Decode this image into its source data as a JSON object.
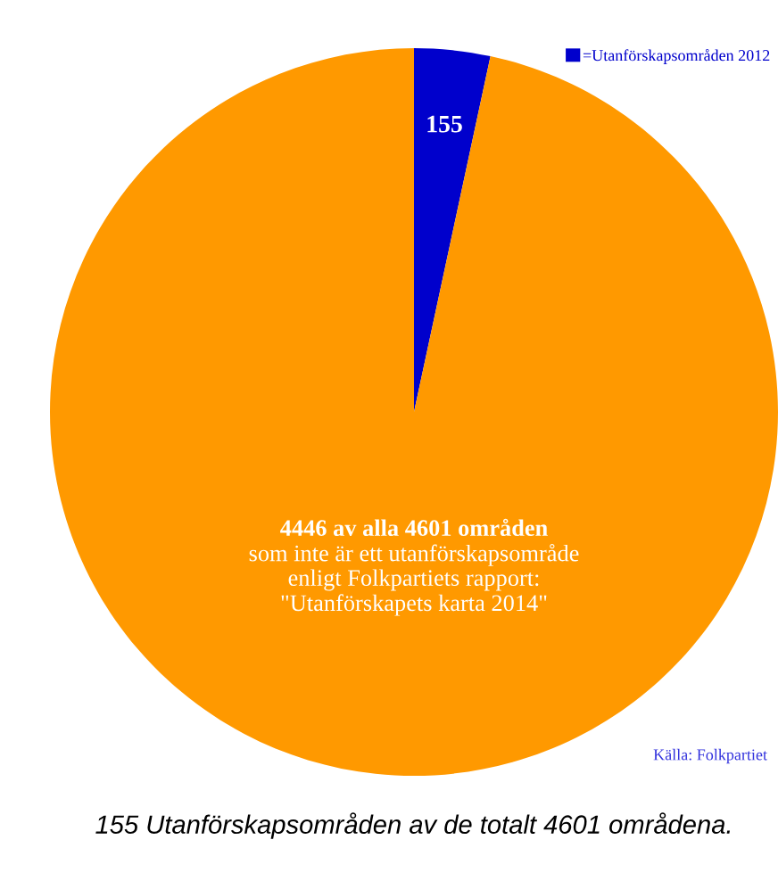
{
  "chart_data": {
    "type": "pie",
    "categories": [
      "=Utanförskapsområden 2012",
      null
    ],
    "values": [
      155,
      4446
    ],
    "colors": [
      "#0000cc",
      "#ff9900"
    ],
    "value_labels": [
      "155",
      "4446 av alla 4601 områden\nsom inte är ett utanförskapsområde\nenligt Folkpartiets rapport:\n\"Utanförskapets karta 2014\""
    ],
    "legend": "top right",
    "annotations": [
      "Källa: Folkpartiet",
      "155 Utanförskapsområden av de totalt 4601 områdena."
    ]
  }
}
